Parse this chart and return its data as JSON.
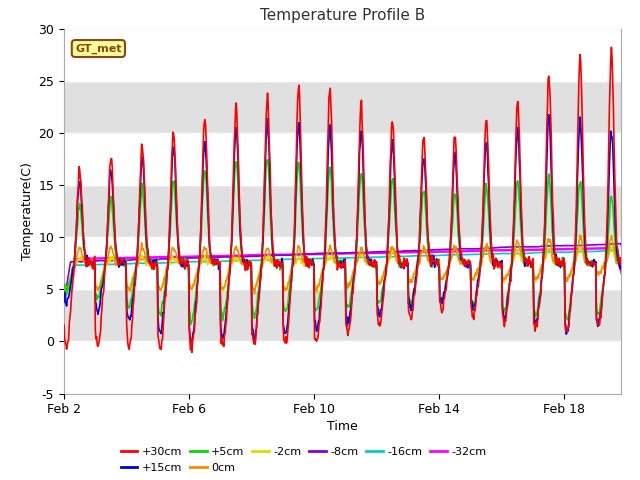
{
  "title": "Temperature Profile B",
  "xlabel": "Time",
  "ylabel": "Temperature(C)",
  "annotation": "GT_met",
  "xlim_days": [
    2,
    19.8
  ],
  "ylim": [
    -5,
    30
  ],
  "yticks": [
    -5,
    0,
    5,
    10,
    15,
    20,
    25,
    30
  ],
  "xtick_labels": [
    "Feb 2",
    "Feb 6",
    "Feb 10",
    "Feb 14",
    "Feb 18"
  ],
  "xtick_positions": [
    2,
    6,
    10,
    14,
    18
  ],
  "background_color": "#ffffff",
  "plot_bg_color": "#e0e0e0",
  "series_colors": {
    "+30cm": "#ff0000",
    "+15cm": "#0000dd",
    "+5cm": "#00dd00",
    "0cm": "#ff8800",
    "-2cm": "#dddd00",
    "-8cm": "#8800cc",
    "-16cm": "#00cccc",
    "-32cm": "#ff00ff"
  },
  "series_linewidths": {
    "+30cm": 1.2,
    "+15cm": 1.2,
    "+5cm": 1.2,
    "0cm": 1.2,
    "-2cm": 1.2,
    "-8cm": 1.2,
    "-16cm": 1.2,
    "-32cm": 1.8
  },
  "band_colors": [
    "#ffffff",
    "#e0e0e0"
  ],
  "band_edges": [
    -5,
    0,
    5,
    10,
    15,
    20,
    25,
    30
  ]
}
